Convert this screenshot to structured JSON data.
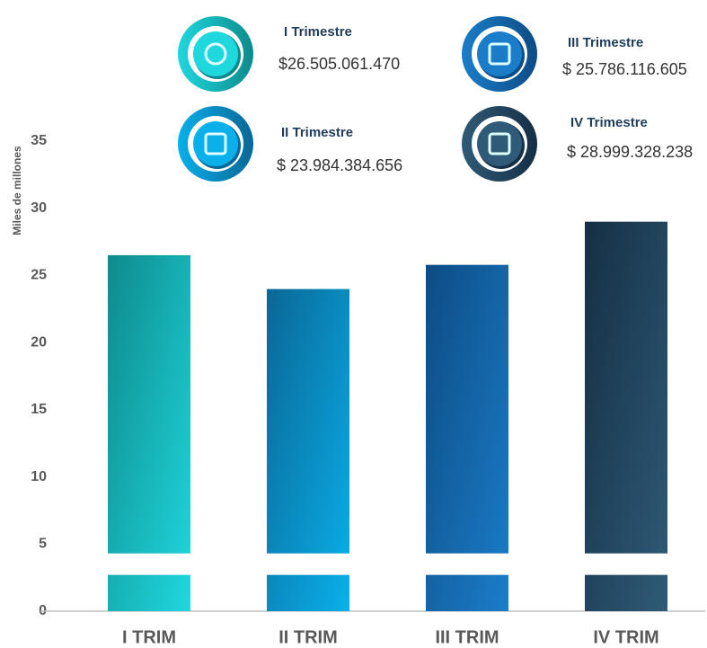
{
  "chart_data": {
    "type": "bar",
    "y_label": "Miles de millones",
    "categories": [
      "I TRIM",
      "II TRIM",
      "III TRIM",
      "IV TRIM"
    ],
    "values": [
      26.50506147,
      23.984384656,
      25.786116605,
      28.999328238
    ],
    "value_titles": [
      "I Trimestre",
      "II Trimestre",
      "III Trimestre",
      "IV Trimestre"
    ],
    "value_labels": [
      "$26.505.061.470",
      "$ 23.984.384.656",
      "$ 25.786.116.605",
      "$ 28.999.328.238"
    ],
    "colors": [
      [
        "#0e8a8c",
        "#1fd8de"
      ],
      [
        "#0a6796",
        "#0ab0ea"
      ],
      [
        "#0d4c84",
        "#1b7dc9"
      ],
      [
        "#152f45",
        "#2f5b78"
      ]
    ],
    "ylim": [
      0,
      35
    ],
    "yticks": [
      0,
      5,
      10,
      15,
      20,
      25,
      30,
      35
    ],
    "axis_break": [
      2.7,
      4.3
    ]
  }
}
